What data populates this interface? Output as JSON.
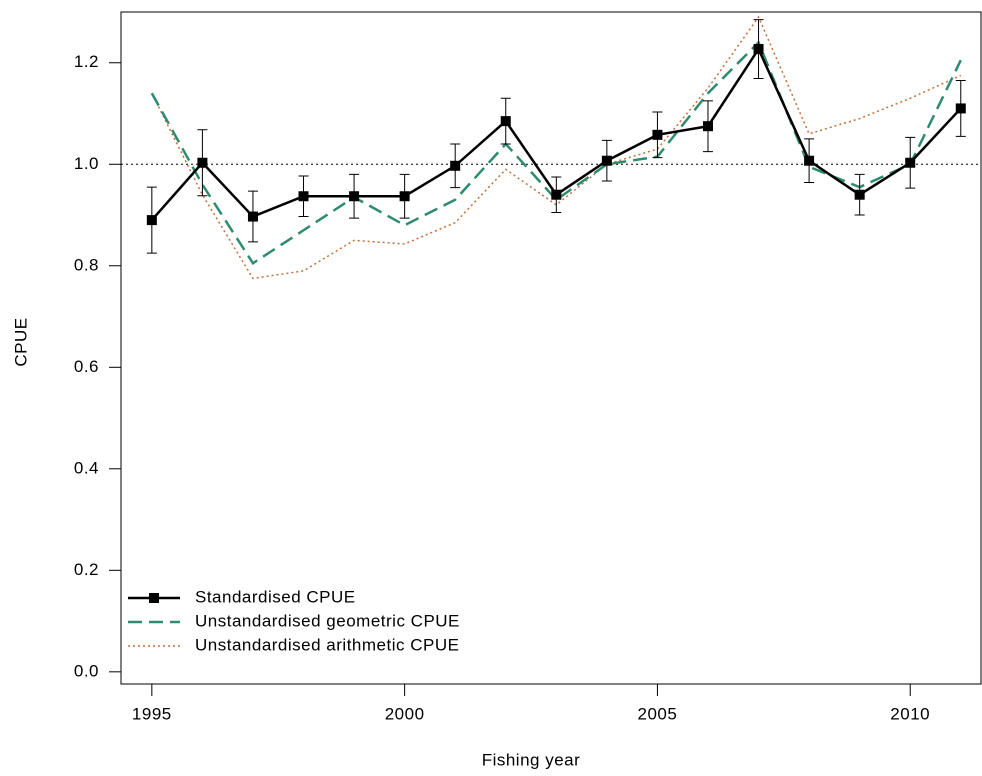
{
  "chart_data": {
    "type": "line",
    "xlabel": "Fishing year",
    "ylabel": "CPUE",
    "x": [
      1995,
      1996,
      1997,
      1998,
      1999,
      2000,
      2001,
      2002,
      2003,
      2004,
      2005,
      2006,
      2007,
      2008,
      2009,
      2010,
      2011
    ],
    "series": [
      {
        "name": "Standardised CPUE",
        "color": "#000000",
        "style": "solid",
        "marker": "square",
        "values": [
          0.89,
          1.003,
          0.897,
          0.937,
          0.937,
          0.937,
          0.997,
          1.085,
          0.94,
          1.007,
          1.058,
          1.075,
          1.227,
          1.007,
          0.94,
          1.003,
          1.11
        ],
        "errors": [
          0.065,
          0.065,
          0.05,
          0.04,
          0.043,
          0.043,
          0.043,
          0.045,
          0.035,
          0.04,
          0.045,
          0.05,
          0.058,
          0.043,
          0.04,
          0.05,
          0.055
        ]
      },
      {
        "name": "Unstandardised geometric CPUE",
        "color": "#2e8b70",
        "style": "dashed",
        "values": [
          1.14,
          0.96,
          0.805,
          0.87,
          0.935,
          0.88,
          0.93,
          1.04,
          0.93,
          1.0,
          1.015,
          1.14,
          1.24,
          0.995,
          0.955,
          1.0,
          1.205
        ]
      },
      {
        "name": "Unstandardised arithmetic CPUE",
        "color": "#c0703a",
        "style": "dotted",
        "values": [
          1.14,
          0.94,
          0.775,
          0.79,
          0.85,
          0.843,
          0.885,
          0.99,
          0.92,
          1.0,
          1.03,
          1.15,
          1.29,
          1.06,
          1.09,
          1.13,
          1.175
        ]
      }
    ],
    "xlim": [
      1994.39,
      2011.4
    ],
    "xticks": [
      1995,
      2000,
      2005,
      2010
    ],
    "ylim": [
      -0.024,
      1.3
    ],
    "yticks": [
      {
        "value": 0,
        "label": "0.0"
      },
      0.2,
      0.4,
      0.6,
      0.8,
      {
        "value": 1,
        "label": "1.0"
      },
      1.2
    ],
    "hline": 1,
    "legend": "bottomleft"
  }
}
